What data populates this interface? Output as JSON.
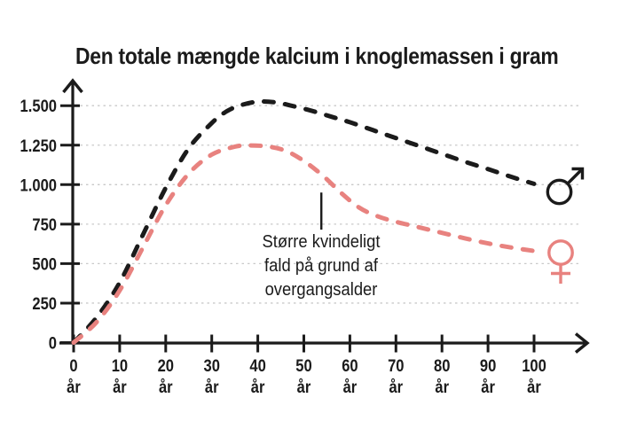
{
  "title": "Den totale mængde kalcium i knoglemassen i gram",
  "annotation": {
    "lines": [
      "Større kvindeligt",
      "fald på grund af",
      "overgangsalder"
    ]
  },
  "colors": {
    "male": "#1b1b1b",
    "female": "#e8827f",
    "grid": "#c9c9c9",
    "axis": "#1b1b1b",
    "text": "#1b1b1b",
    "background": "#ffffff"
  },
  "chart_data": {
    "type": "line",
    "title": "Den totale mængde kalcium i knoglemassen i gram",
    "grid": "horizontal-dashed",
    "legend_position": "symbols-at-line-ends",
    "xlim": [
      0,
      106
    ],
    "ylim": [
      0,
      1600
    ],
    "x_tick_unit": "år",
    "x_tick_values": [
      0,
      10,
      20,
      30,
      40,
      50,
      60,
      70,
      80,
      90,
      100
    ],
    "y_ticks": [
      {
        "value": 1500,
        "label": "1.500"
      },
      {
        "value": 1250,
        "label": "1.250"
      },
      {
        "value": 1000,
        "label": "1.000"
      },
      {
        "value": 750,
        "label": "750"
      },
      {
        "value": 500,
        "label": "500"
      },
      {
        "value": 250,
        "label": "250"
      },
      {
        "value": 0,
        "label": "0"
      }
    ],
    "series": [
      {
        "name": "male",
        "gender": "male",
        "symbol": "♂",
        "color": "#1b1b1b",
        "line_style": "dashed",
        "points": [
          [
            0,
            0
          ],
          [
            5,
            160
          ],
          [
            10,
            380
          ],
          [
            15,
            680
          ],
          [
            20,
            980
          ],
          [
            25,
            1230
          ],
          [
            30,
            1390
          ],
          [
            33,
            1460
          ],
          [
            36,
            1500
          ],
          [
            40,
            1525
          ],
          [
            44,
            1520
          ],
          [
            48,
            1495
          ],
          [
            52,
            1465
          ],
          [
            56,
            1430
          ],
          [
            60,
            1395
          ],
          [
            65,
            1345
          ],
          [
            70,
            1295
          ],
          [
            75,
            1245
          ],
          [
            80,
            1195
          ],
          [
            85,
            1145
          ],
          [
            90,
            1098
          ],
          [
            95,
            1050
          ],
          [
            100,
            1005
          ]
        ]
      },
      {
        "name": "female",
        "gender": "female",
        "symbol": "♀",
        "color": "#e8827f",
        "line_style": "dashed",
        "points": [
          [
            0,
            0
          ],
          [
            5,
            130
          ],
          [
            10,
            330
          ],
          [
            15,
            600
          ],
          [
            20,
            870
          ],
          [
            25,
            1070
          ],
          [
            30,
            1190
          ],
          [
            35,
            1240
          ],
          [
            38,
            1248
          ],
          [
            42,
            1242
          ],
          [
            46,
            1215
          ],
          [
            50,
            1150
          ],
          [
            54,
            1060
          ],
          [
            58,
            950
          ],
          [
            62,
            855
          ],
          [
            66,
            800
          ],
          [
            70,
            765
          ],
          [
            75,
            730
          ],
          [
            80,
            695
          ],
          [
            85,
            660
          ],
          [
            90,
            628
          ],
          [
            95,
            602
          ],
          [
            100,
            580
          ]
        ]
      }
    ],
    "annotation": {
      "text": "Større kvindeligt fald på grund af overgangsalder",
      "pointer_age": 53.8,
      "pointer_value_range": [
        950,
        715
      ]
    }
  }
}
